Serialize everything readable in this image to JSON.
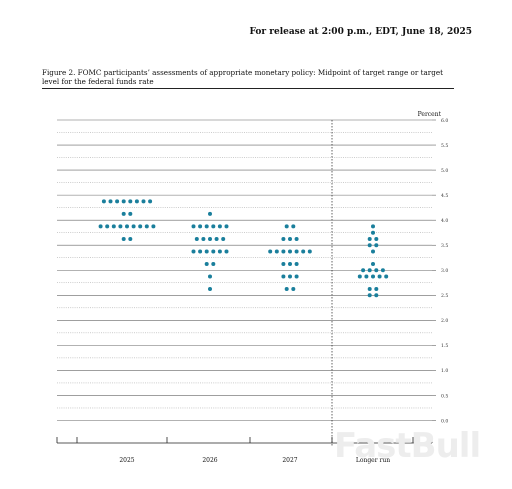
{
  "header": {
    "release": "For release at 2:00 p.m., EDT, June 18, 2025",
    "caption": "Figure 2.  FOMC participants’ assessments of appropriate monetary policy: Midpoint of target range or target level for the federal funds rate"
  },
  "watermark": {
    "text": "FastBull"
  },
  "colors": {
    "dot": "#1a7f9c",
    "grid_major": "#666666",
    "grid_minor": "#9a9a9a",
    "text": "#111111"
  },
  "chart_data": {
    "type": "scatter",
    "ylabel": "Percent",
    "ylim": [
      0,
      6
    ],
    "y_ticks": [
      "0.0",
      "0.5",
      "1.0",
      "1.5",
      "2.0",
      "2.5",
      "3.0",
      "3.5",
      "4.0",
      "4.5",
      "5.0",
      "5.5",
      "6.0"
    ],
    "categories": [
      "2025",
      "2026",
      "2027",
      "Longer run"
    ],
    "grid": true,
    "separator_before": "Longer run",
    "dots": [
      [
        {
          "rate": 4.375,
          "count": 8
        },
        {
          "rate": 4.125,
          "count": 2
        },
        {
          "rate": 3.875,
          "count": 9
        },
        {
          "rate": 3.625,
          "count": 2
        }
      ],
      [
        {
          "rate": 4.125,
          "count": 1
        },
        {
          "rate": 3.875,
          "count": 6
        },
        {
          "rate": 3.625,
          "count": 5
        },
        {
          "rate": 3.375,
          "count": 6
        },
        {
          "rate": 3.125,
          "count": 2
        },
        {
          "rate": 2.875,
          "count": 1
        },
        {
          "rate": 2.625,
          "count": 1
        }
      ],
      [
        {
          "rate": 3.875,
          "count": 2
        },
        {
          "rate": 3.625,
          "count": 3
        },
        {
          "rate": 3.375,
          "count": 7
        },
        {
          "rate": 3.125,
          "count": 3
        },
        {
          "rate": 2.875,
          "count": 3
        },
        {
          "rate": 2.625,
          "count": 2
        }
      ],
      [
        {
          "rate": 3.875,
          "count": 1
        },
        {
          "rate": 3.75,
          "count": 1
        },
        {
          "rate": 3.625,
          "count": 2
        },
        {
          "rate": 3.5,
          "count": 2
        },
        {
          "rate": 3.375,
          "count": 1
        },
        {
          "rate": 3.125,
          "count": 1
        },
        {
          "rate": 3.0,
          "count": 4
        },
        {
          "rate": 2.875,
          "count": 5
        },
        {
          "rate": 2.625,
          "count": 2
        },
        {
          "rate": 2.5,
          "count": 2
        }
      ]
    ]
  }
}
